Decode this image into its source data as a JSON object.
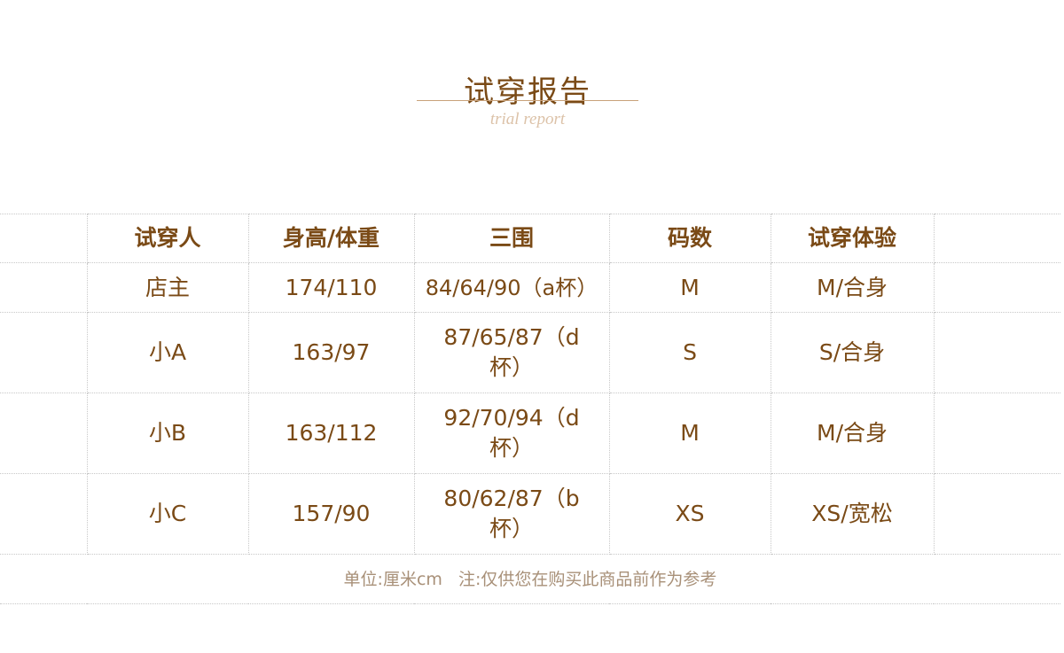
{
  "header": {
    "title": "试穿报告",
    "subtitle": "trial report"
  },
  "table": {
    "columns": [
      "试穿人",
      "身高/体重",
      "三围",
      "码数",
      "试穿体验"
    ],
    "rows": [
      [
        "店主",
        "174/110",
        "84/64/90（a杯）",
        "M",
        "M/合身"
      ],
      [
        "小A",
        "163/97",
        "87/65/87（d杯）",
        "S",
        "S/合身"
      ],
      [
        "小B",
        "163/112",
        "92/70/94（d杯）",
        "M",
        "M/合身"
      ],
      [
        "小C",
        "157/90",
        "80/62/87（b杯）",
        "XS",
        "XS/宽松"
      ]
    ]
  },
  "footer": {
    "note": "单位:厘米cm   注:仅供您在购买此商品前作为参考"
  },
  "colors": {
    "text": "#7a4a16",
    "accent_line": "#c9a27a",
    "subtitle": "#dcc2a8",
    "note": "#a89078"
  }
}
